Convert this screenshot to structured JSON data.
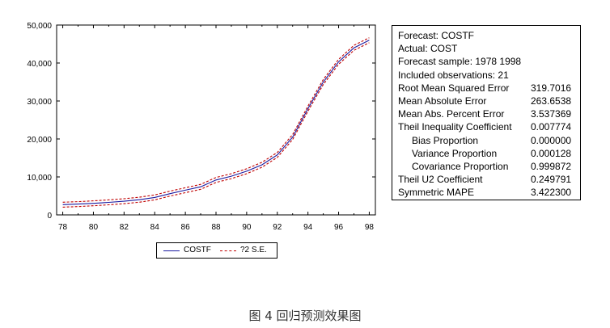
{
  "chart_data": {
    "type": "line",
    "x": [
      78,
      79,
      80,
      81,
      82,
      83,
      84,
      85,
      86,
      87,
      88,
      89,
      90,
      91,
      92,
      93,
      94,
      95,
      96,
      97,
      98
    ],
    "series": [
      {
        "name": "COSTF",
        "color": "#1a1aa0",
        "style": "solid",
        "values": [
          2700,
          2850,
          3050,
          3300,
          3600,
          4000,
          4600,
          5600,
          6500,
          7400,
          9200,
          10200,
          11500,
          13200,
          15800,
          20500,
          28000,
          35000,
          40300,
          44000,
          46000
        ]
      },
      {
        "name": "?2 S.E. upper",
        "legend": "?2 S.E.",
        "color": "#c00000",
        "style": "dashed",
        "values": [
          3350,
          3500,
          3700,
          3950,
          4250,
          4650,
          5250,
          6250,
          7150,
          8050,
          9850,
          10850,
          12150,
          13850,
          16450,
          21150,
          28650,
          35650,
          40950,
          44650,
          46650
        ]
      },
      {
        "name": "?2 S.E. lower",
        "legend": "?2 S.E.",
        "color": "#c00000",
        "style": "dashed",
        "values": [
          2050,
          2200,
          2400,
          2650,
          2950,
          3350,
          3950,
          4950,
          5850,
          6750,
          8550,
          9550,
          10850,
          12550,
          15150,
          19850,
          27350,
          34350,
          39650,
          43350,
          45350
        ]
      }
    ],
    "x_tick_labels": [
      "78",
      "80",
      "82",
      "84",
      "86",
      "88",
      "90",
      "92",
      "94",
      "96",
      "98"
    ],
    "y_tick_labels": [
      "0",
      "10,000",
      "20,000",
      "30,000",
      "40,000",
      "50,000"
    ],
    "xlim": [
      77.6,
      98.4
    ],
    "ylim": [
      0,
      50000
    ],
    "title": "",
    "xlabel": "",
    "ylabel": ""
  },
  "legend": {
    "items": [
      {
        "label": "COSTF",
        "color": "#1a1aa0",
        "style": "solid"
      },
      {
        "label": "?2 S.E.",
        "color": "#c00000",
        "style": "dashed"
      }
    ]
  },
  "stats": {
    "rows": [
      {
        "label": "Forecast: COSTF",
        "value": "",
        "indent": false
      },
      {
        "label": "Actual: COST",
        "value": "",
        "indent": false
      },
      {
        "label": "Forecast sample: 1978 1998",
        "value": "",
        "indent": false
      },
      {
        "label": "Included observations: 21",
        "value": "",
        "indent": false
      },
      {
        "label": "Root Mean Squared Error",
        "value": "319.7016",
        "indent": false
      },
      {
        "label": "Mean Absolute Error",
        "value": "263.6538",
        "indent": false
      },
      {
        "label": "Mean Abs. Percent Error",
        "value": "3.537369",
        "indent": false
      },
      {
        "label": "Theil Inequality Coefficient",
        "value": "0.007774",
        "indent": false
      },
      {
        "label": "Bias Proportion",
        "value": "0.000000",
        "indent": true
      },
      {
        "label": "Variance Proportion",
        "value": "0.000128",
        "indent": true
      },
      {
        "label": "Covariance Proportion",
        "value": "0.999872",
        "indent": true
      },
      {
        "label": "Theil U2 Coefficient",
        "value": "0.249791",
        "indent": false
      },
      {
        "label": "Symmetric MAPE",
        "value": "3.422300",
        "indent": false
      }
    ]
  },
  "caption": "图 4  回归预测效果图"
}
